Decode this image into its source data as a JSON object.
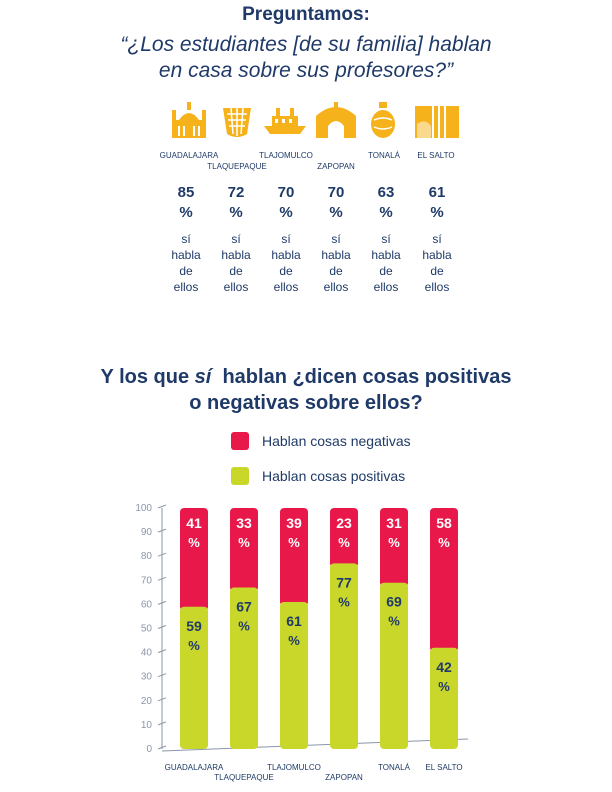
{
  "header": {
    "title": "Preguntamos:",
    "question_line1": "“¿Los estudiantes [de su familia] hablan",
    "question_line2": "en casa sobre sus profesores?”"
  },
  "colors": {
    "icon_gold": "#f5b21b",
    "negative": "#e8184a",
    "positive": "#c9d62a",
    "text_navy": "#1f3a68",
    "axis_gray": "#8a96aa"
  },
  "cities": [
    {
      "name": "GUADALAJARA",
      "icon": "cathedral-icon",
      "talk_pct_value": "85",
      "pct_sign": "%",
      "note": [
        "sí",
        "habla",
        "de",
        "ellos"
      ]
    },
    {
      "name": "TLAQUEPAQUE",
      "icon": "basket-icon",
      "talk_pct_value": "72",
      "pct_sign": "%",
      "note": [
        "sí",
        "habla",
        "de",
        "ellos"
      ]
    },
    {
      "name": "TLAJOMULCO",
      "icon": "boat-icon",
      "talk_pct_value": "70",
      "pct_sign": "%",
      "note": [
        "sí",
        "habla",
        "de",
        "ellos"
      ]
    },
    {
      "name": "ZAPOPAN",
      "icon": "arch-icon",
      "talk_pct_value": "70",
      "pct_sign": "%",
      "note": [
        "sí",
        "habla",
        "de",
        "ellos"
      ]
    },
    {
      "name": "TONALÁ",
      "icon": "pot-icon",
      "talk_pct_value": "63",
      "pct_sign": "%",
      "note": [
        "sí",
        "habla",
        "de",
        "ellos"
      ]
    },
    {
      "name": "EL SALTO",
      "icon": "waterfall-icon",
      "talk_pct_value": "61",
      "pct_sign": "%",
      "note": [
        "sí",
        "habla",
        "de",
        "ellos"
      ]
    }
  ],
  "section2": {
    "title_part1": "Y los que ",
    "title_em": "sí",
    "title_part2": "  hablan ¿dicen cosas positivas",
    "title_line2": "o negativas sobre ellos?"
  },
  "legend": {
    "negative": "Hablan cosas negativas",
    "positive": "Hablan cosas positivas"
  },
  "chart_data": {
    "type": "bar",
    "stacked": true,
    "categories": [
      "GUADALAJARA",
      "TLAQUEPAQUE",
      "TLAJOMULCO",
      "ZAPOPAN",
      "TONALÁ",
      "EL SALTO"
    ],
    "series": [
      {
        "name": "Hablan cosas positivas",
        "values": [
          59,
          67,
          61,
          77,
          69,
          42
        ],
        "color": "#c9d62a"
      },
      {
        "name": "Hablan cosas negativas",
        "values": [
          41,
          33,
          39,
          23,
          31,
          58
        ],
        "color": "#e8184a"
      }
    ],
    "ylim": [
      0,
      100
    ],
    "yticks": [
      0,
      10,
      20,
      30,
      40,
      50,
      60,
      70,
      80,
      90,
      100
    ],
    "value_suffix": "%",
    "legend_position": "top",
    "grid": false
  }
}
